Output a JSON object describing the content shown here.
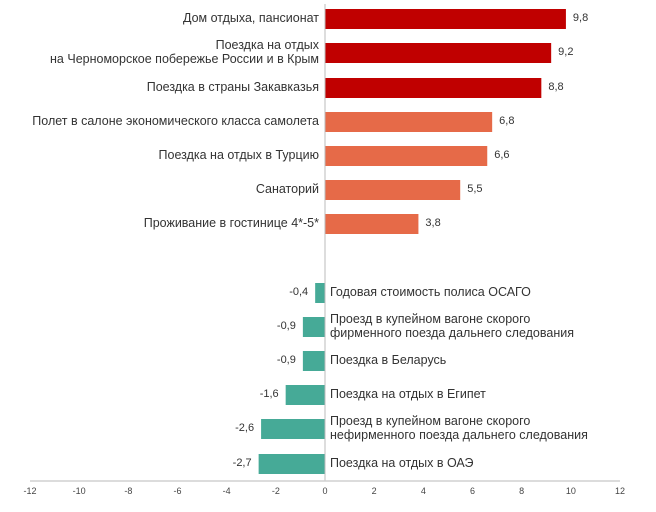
{
  "chart_data": {
    "type": "bar",
    "orientation": "horizontal",
    "categories": [
      [
        "Дом отдыха,  пансионат"
      ],
      [
        "Поездка на отдых",
        "на Черноморское побережье России и в Крым"
      ],
      [
        "Поездка в страны Закавказья"
      ],
      [
        "Полет в салоне экономического класса самолета"
      ],
      [
        "Поездка на отдых в Турцию"
      ],
      [
        "Санаторий"
      ],
      [
        "Проживание в гостинице 4*-5*"
      ],
      [
        "Годовая стоимость полиса ОСАГО"
      ],
      [
        "Проезд в купейном вагоне скорого",
        "фирменного поезда дальнего следования"
      ],
      [
        "Поездка в Беларусь"
      ],
      [
        "Поездка на отдых в Египет"
      ],
      [
        "Проезд в купейном вагоне скорого",
        "нефирменного поезда дальнего следования"
      ],
      [
        "Поездка на отдых в ОАЭ"
      ]
    ],
    "values": [
      9.8,
      9.2,
      8.8,
      6.8,
      6.6,
      5.5,
      3.8,
      -0.4,
      -0.9,
      -0.9,
      -1.6,
      -2.6,
      -2.7
    ],
    "value_labels": [
      "9,8",
      "9,2",
      "8,8",
      "6,8",
      "6,6",
      "5,5",
      "3,8",
      "-0,4",
      "-0,9",
      "-0,9",
      "-1,6",
      "-2,6",
      "-2,7"
    ],
    "bar_colors": [
      "#c00000",
      "#c00000",
      "#c00000",
      "#e66a48",
      "#e66a48",
      "#e66a48",
      "#e66a48",
      "#46aa97",
      "#46aa97",
      "#46aa97",
      "#46aa97",
      "#46aa97",
      "#46aa97"
    ],
    "xlim": [
      -12,
      12
    ],
    "xticks": [
      "-12",
      "-10",
      "-8",
      "-6",
      "-4",
      "-2",
      "0",
      "2",
      "4",
      "6",
      "8",
      "10",
      "12"
    ],
    "title": "",
    "xlabel": "",
    "ylabel": "",
    "grid": false
  }
}
